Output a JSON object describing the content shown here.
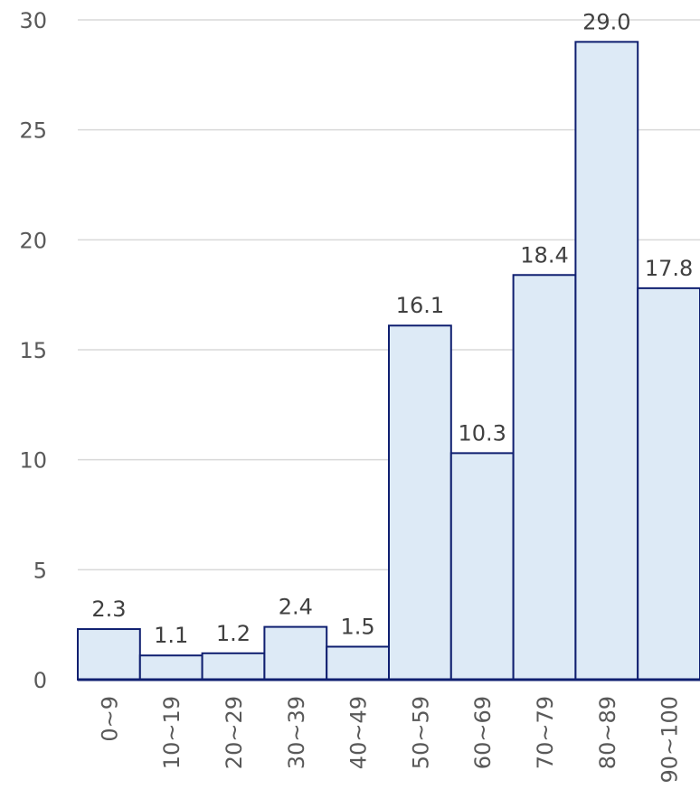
{
  "chart_data": {
    "type": "bar",
    "categories": [
      "0~9",
      "10~19",
      "20~29",
      "30~39",
      "40~49",
      "50~59",
      "60~69",
      "70~79",
      "80~89",
      "90~100"
    ],
    "values": [
      2.3,
      1.1,
      1.2,
      2.4,
      1.5,
      16.1,
      10.3,
      18.4,
      29.0,
      17.8
    ],
    "value_labels": [
      "2.3",
      "1.1",
      "1.2",
      "2.4",
      "1.5",
      "16.1",
      "10.3",
      "18.4",
      "29.0",
      "17.8"
    ],
    "yticks": [
      0,
      5,
      10,
      15,
      20,
      25,
      30
    ],
    "ylim": [
      0,
      30
    ],
    "grid": true,
    "bar_gap": "none",
    "colors": {
      "bar_fill": "#ddeaf6",
      "bar_stroke": "#0f1f70",
      "axis": "#0f1f70",
      "grid": "#d9d9d9"
    }
  }
}
